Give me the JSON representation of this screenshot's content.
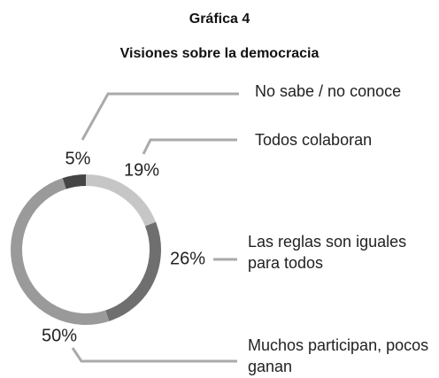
{
  "chart_data": {
    "type": "donut",
    "title": "Gráfica 4",
    "subtitle": "Visiones sobre la democracia",
    "categories": [
      "Todos colaboran",
      "Las reglas son iguales para todos",
      "Muchos participan, pocos ganan",
      "No sabe / no conoce"
    ],
    "values": [
      19,
      26,
      50,
      5
    ],
    "value_labels": [
      "19%",
      "26%",
      "50%",
      "5%"
    ],
    "colors": [
      "#c6c6c6",
      "#6f6f6f",
      "#9a9a9a",
      "#454545"
    ]
  }
}
